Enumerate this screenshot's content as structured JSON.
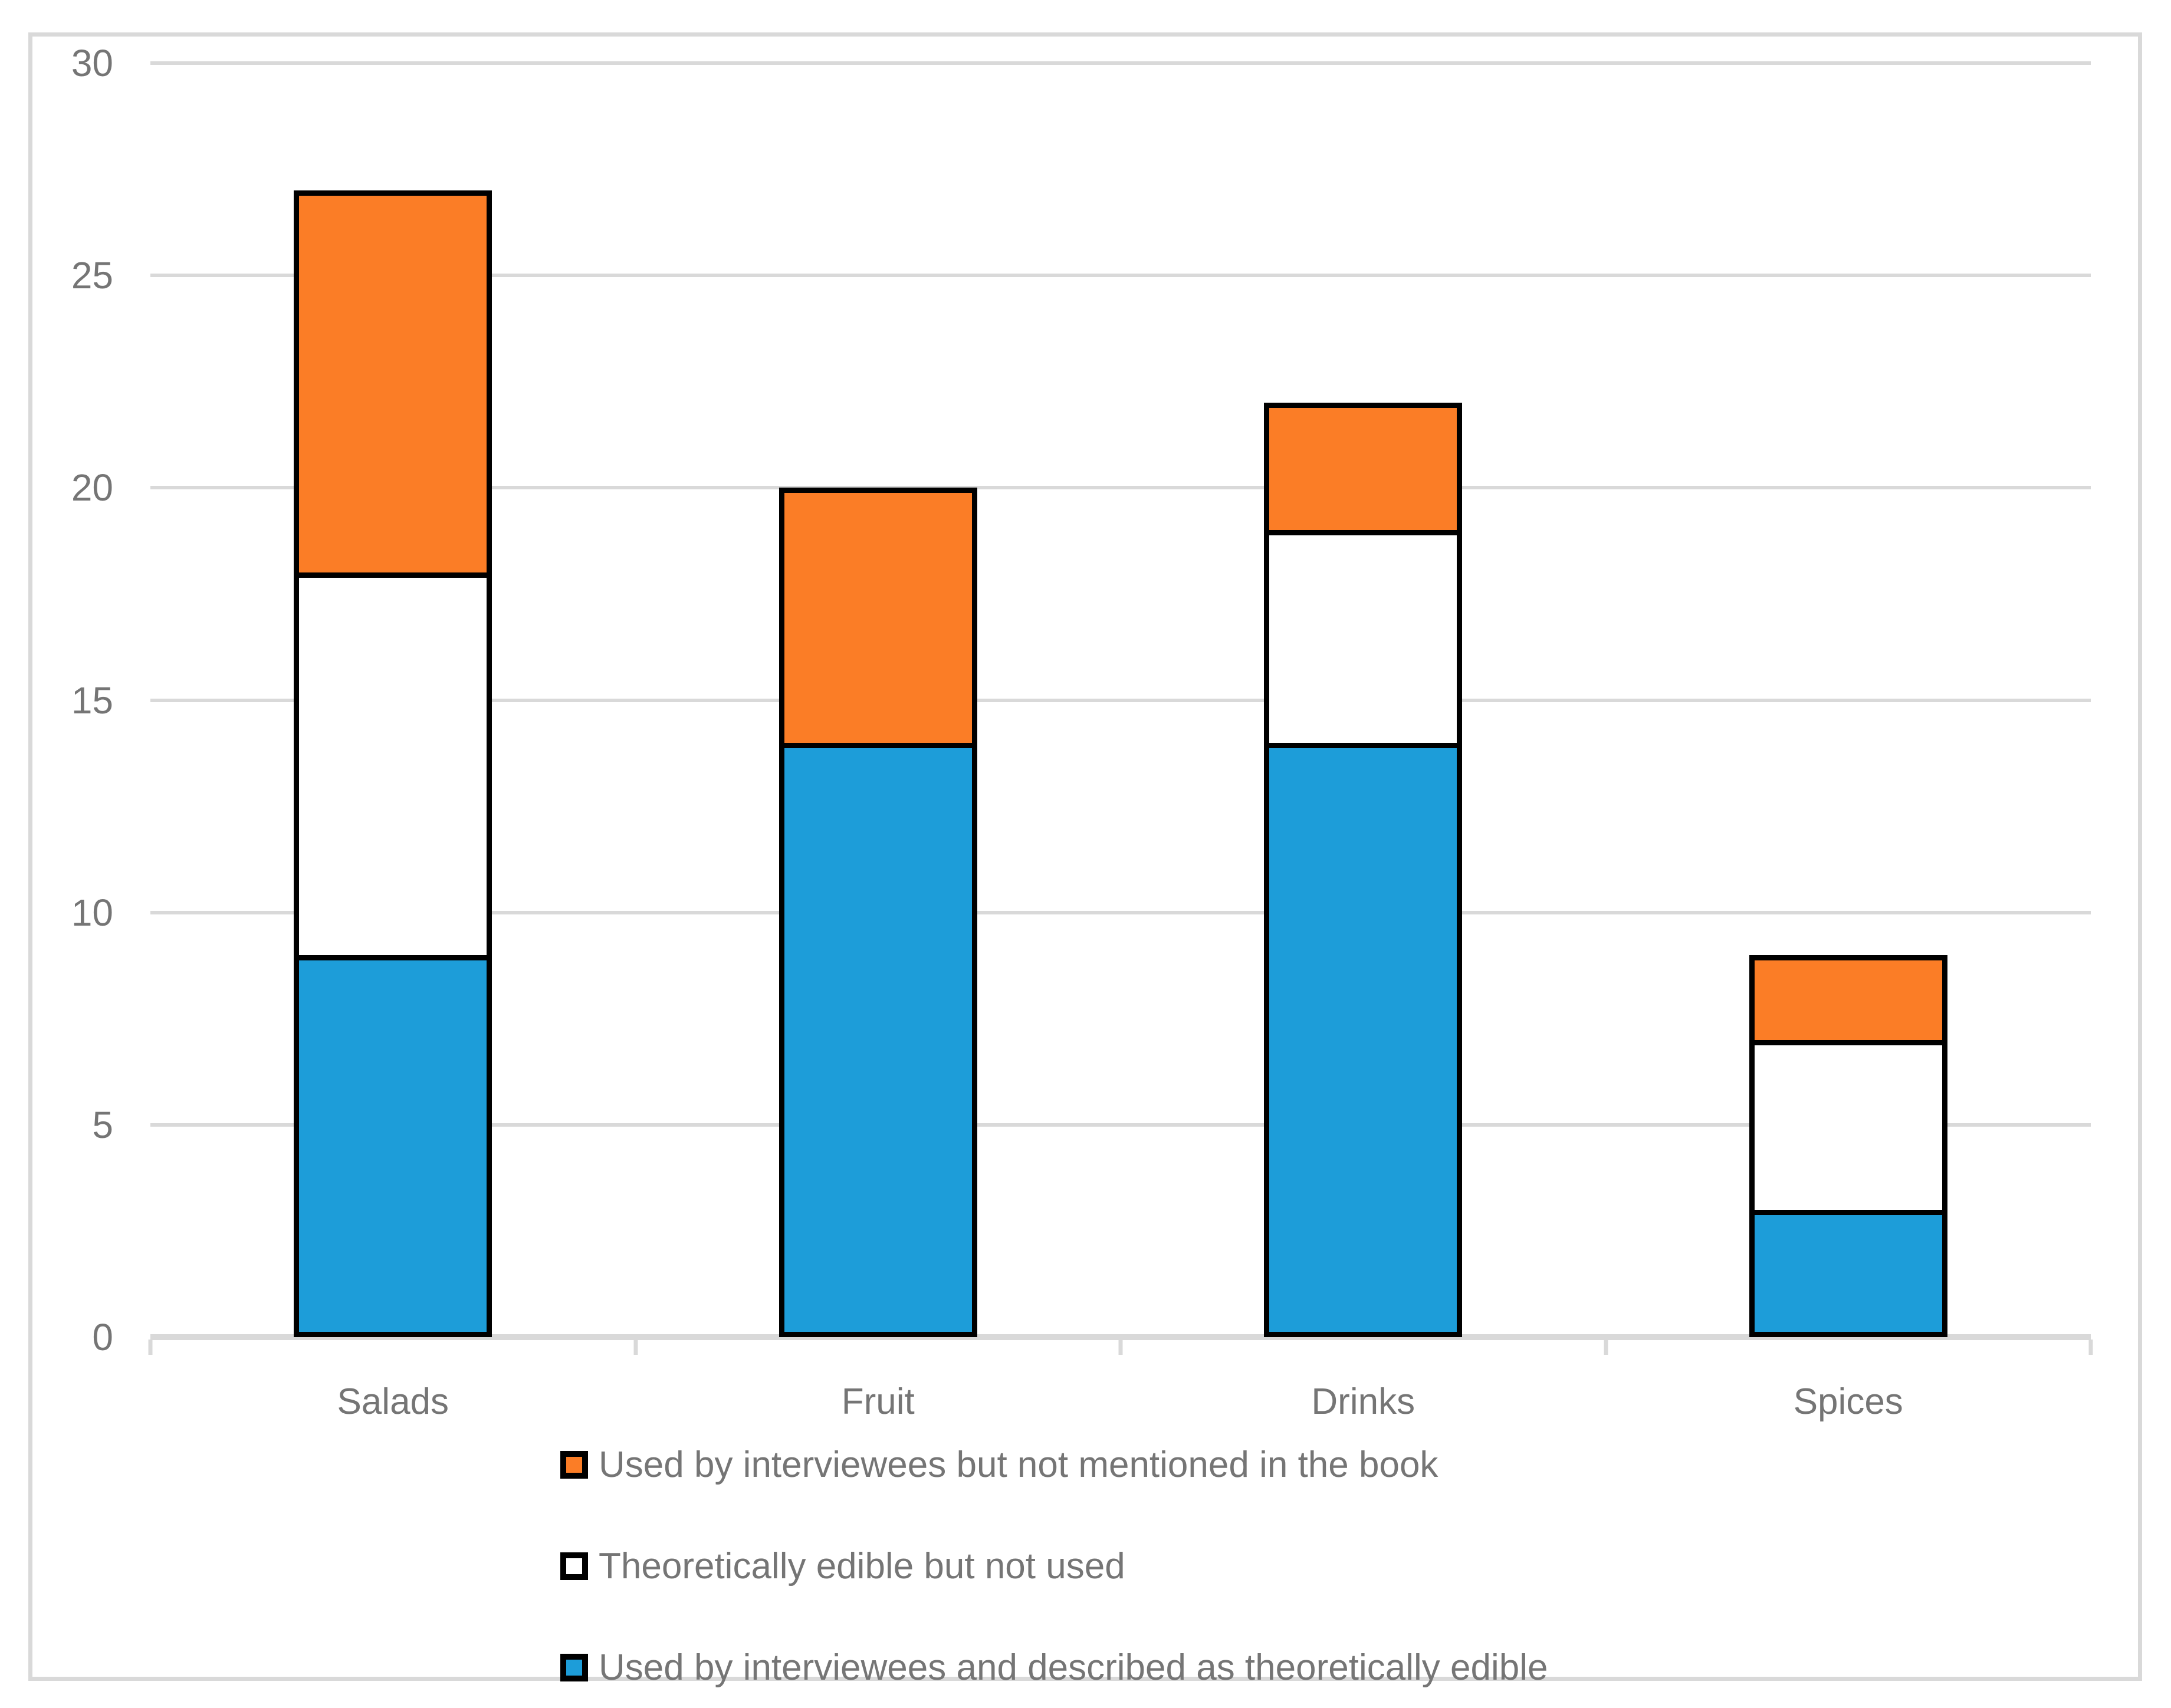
{
  "chart_data": {
    "type": "bar",
    "stacked": true,
    "title": "",
    "categories": [
      "Salads",
      "Fruit",
      "Drinks",
      "Spices"
    ],
    "series": [
      {
        "name": "Used by interviewees and described as theoretically edible",
        "color": "#1D9DD9",
        "values": [
          9,
          14,
          14,
          3
        ]
      },
      {
        "name": "Theoretically edible but not used",
        "color": "#FFFFFF",
        "values": [
          9,
          0,
          5,
          4
        ]
      },
      {
        "name": "Used by interviewees but not mentioned in the book",
        "color": "#FB7D26",
        "values": [
          9,
          6,
          3,
          2
        ]
      }
    ],
    "stack_totals": [
      27,
      20,
      22,
      9
    ],
    "ylim": [
      0,
      30
    ],
    "ytick_step": 5,
    "ytick_labels": [
      "0",
      "5",
      "10",
      "15",
      "20",
      "25",
      "30"
    ],
    "grid": true,
    "legend_position": "bottom-left",
    "legend": [
      {
        "label": "Used by interviewees but not mentioned in the book",
        "color": "#FB7D26"
      },
      {
        "label": "Theoretically edible but not used",
        "color": "#FFFFFF"
      },
      {
        "label": "Used by interviewees and described as theoretically edible",
        "color": "#1D9DD9"
      }
    ],
    "colors": {
      "bar_outline": "#000000",
      "gridline": "#D9D9D9",
      "axis_line": "#D9D9D9",
      "frame_border": "#D9D9D9",
      "text": "#757575",
      "background": "#FFFFFF"
    }
  }
}
